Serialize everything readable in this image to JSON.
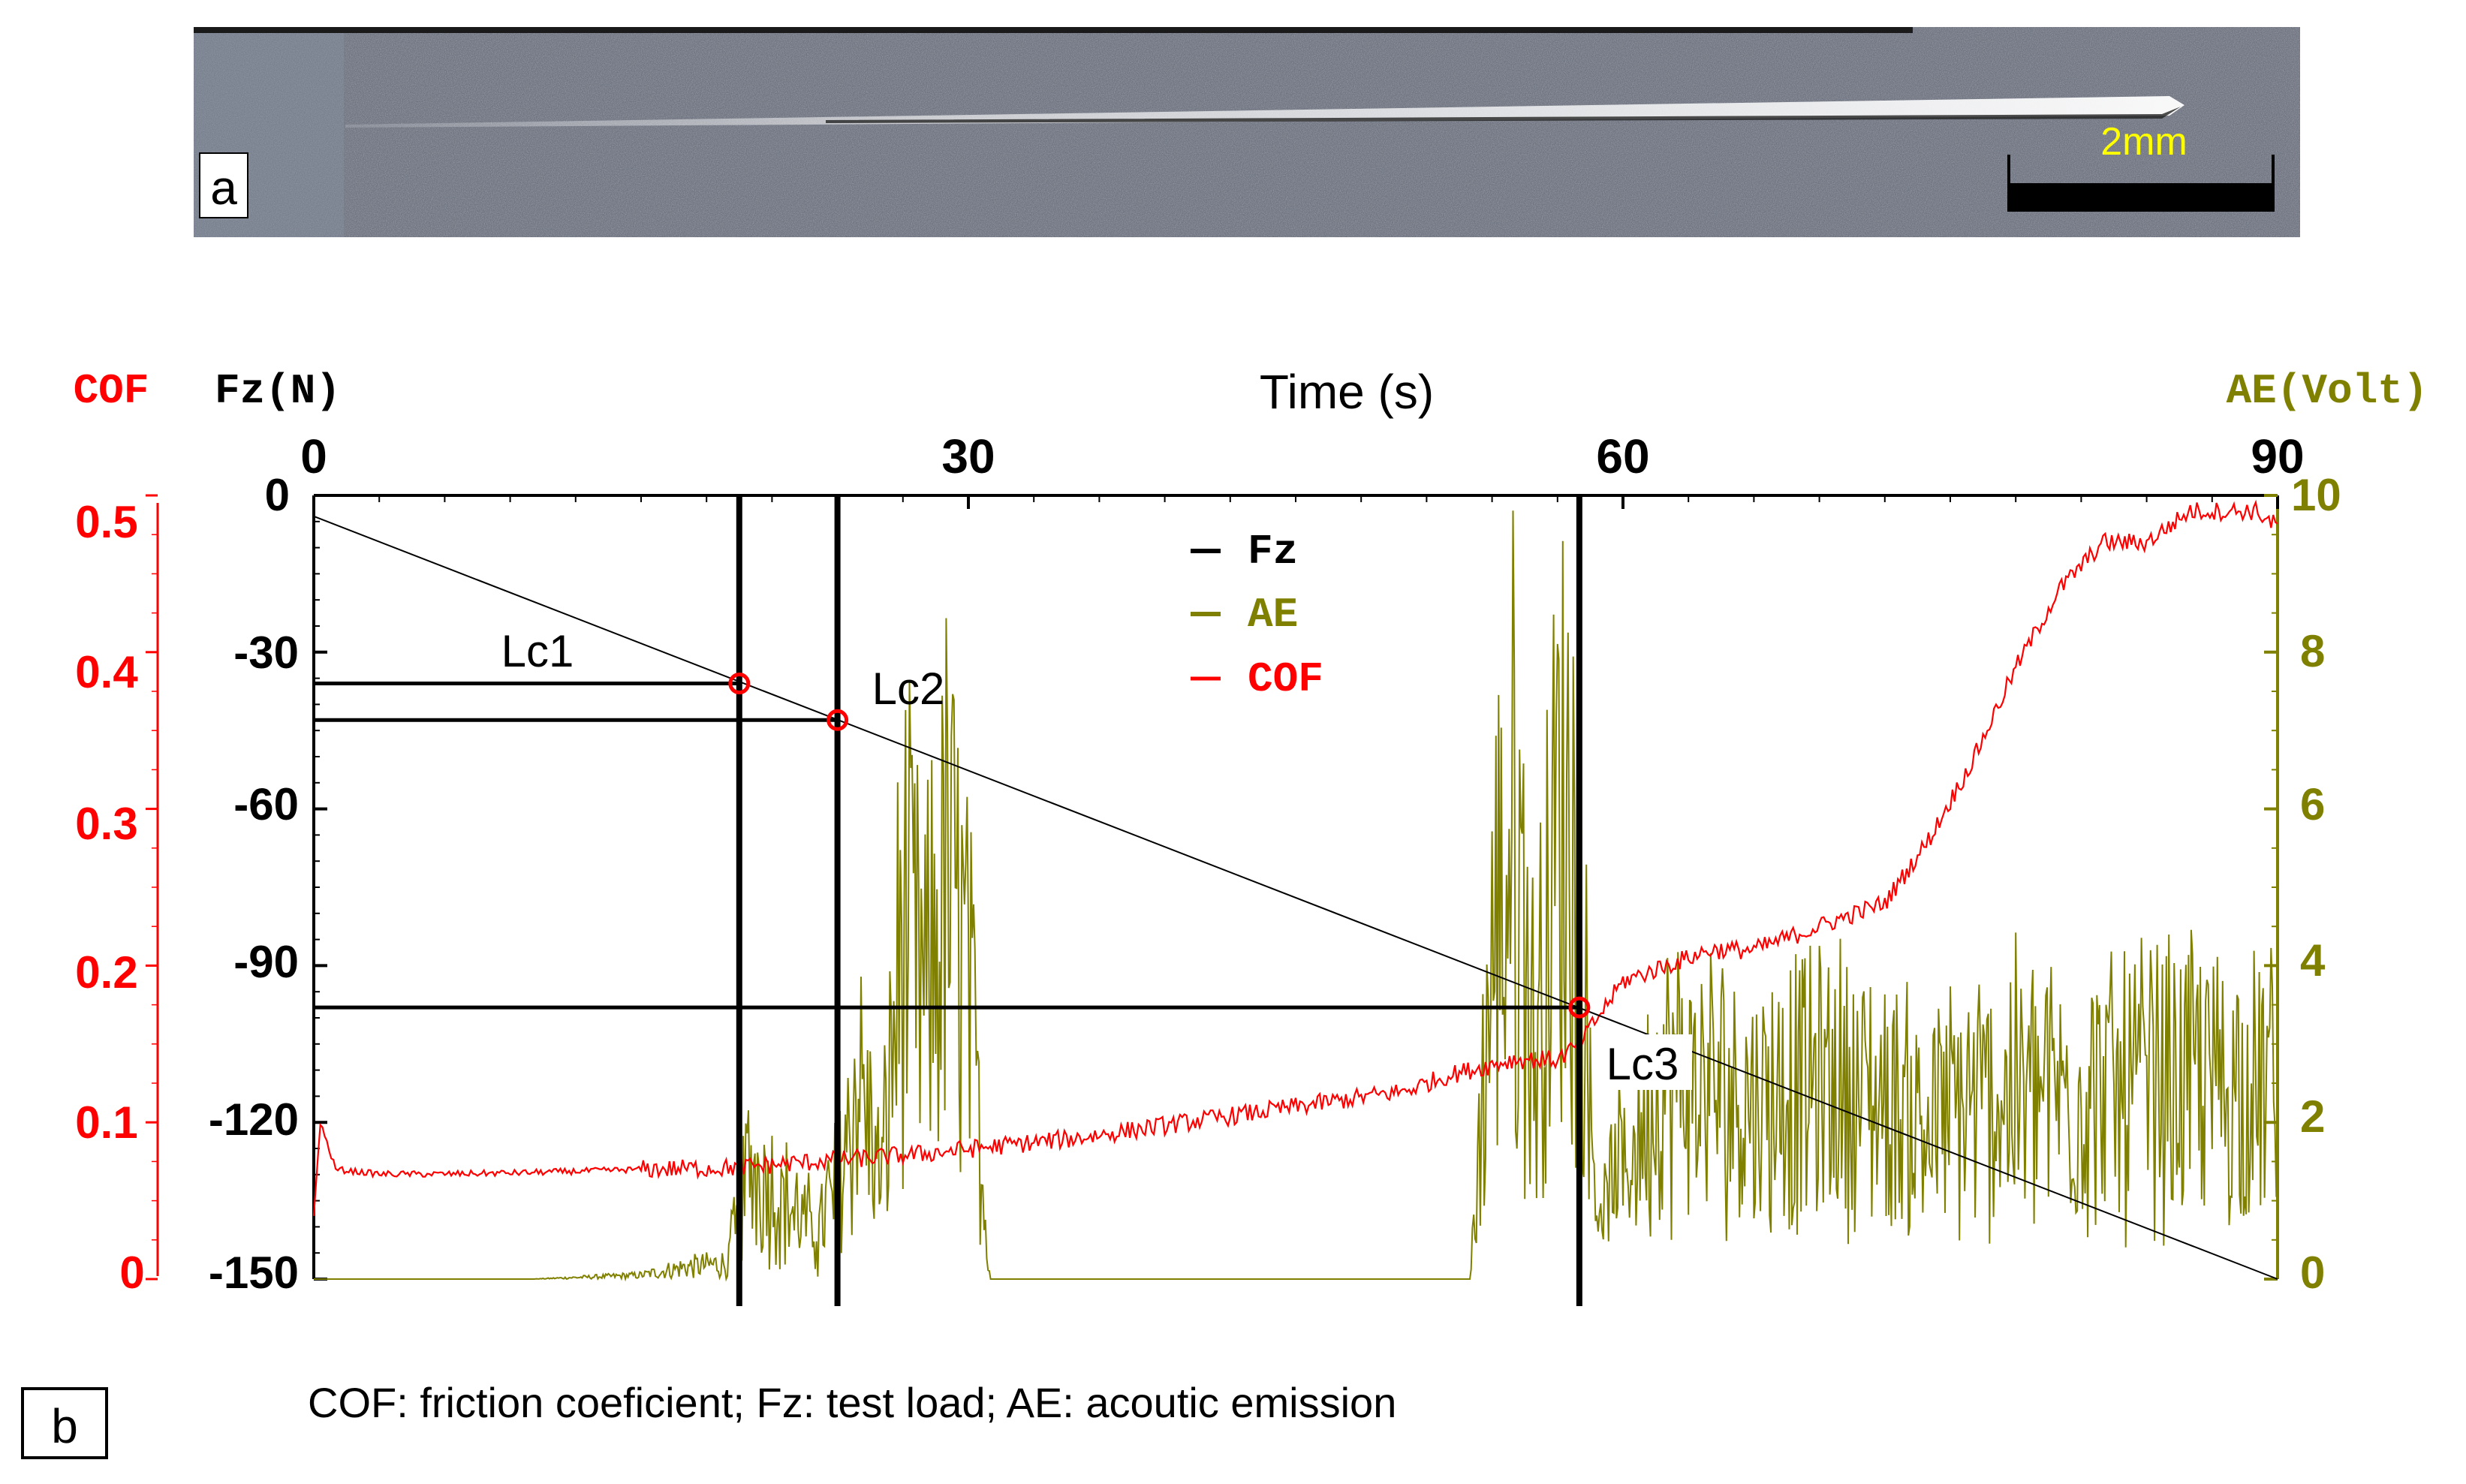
{
  "panel_a": {
    "label": "a",
    "scale_bar_label": "2mm"
  },
  "panel_b": {
    "label": "b",
    "caption": "COF: friction coeficient; Fz: test load; AE: acoutic emission"
  },
  "colors": {
    "cof": "#ff0000",
    "fz": "#000000",
    "ae": "#808000"
  },
  "chart_data": {
    "type": "line",
    "xlabel": "Time (s)",
    "xlim": [
      0,
      90
    ],
    "x_ticks": [
      "0",
      "30",
      "60",
      "90"
    ],
    "axes": {
      "cof": {
        "label": "COF",
        "lim": [
          0,
          0.5
        ],
        "ticks": [
          "0",
          "0.1",
          "0.2",
          "0.3",
          "0.4",
          "0.5"
        ]
      },
      "fz": {
        "label": "Fz(N)",
        "lim": [
          -150,
          0
        ],
        "ticks": [
          "0",
          "-30",
          "-60",
          "-90",
          "-120",
          "-150"
        ]
      },
      "ae": {
        "label": "AE(Volt)",
        "lim": [
          0,
          10
        ],
        "ticks": [
          "0",
          "2",
          "4",
          "6",
          "8",
          "10"
        ]
      }
    },
    "legend": [
      "Fz",
      "AE",
      "COF"
    ],
    "legend_position": "top-center",
    "series": [
      {
        "name": "Fz",
        "axis": "fz",
        "x": [
          0,
          90
        ],
        "y": [
          -4,
          -150
        ]
      },
      {
        "name": "COF",
        "axis": "cof",
        "x": [
          0,
          0.3,
          1,
          3,
          6,
          10,
          15,
          19,
          20,
          22,
          24,
          26,
          28,
          30,
          35,
          40,
          45,
          50,
          52,
          55,
          57,
          58,
          59,
          60,
          62,
          64,
          66,
          68,
          70,
          72,
          74,
          76,
          78,
          80,
          82,
          84,
          85,
          86,
          87,
          88,
          89,
          90
        ],
        "y": [
          0.04,
          0.1,
          0.07,
          0.067,
          0.067,
          0.068,
          0.07,
          0.071,
          0.072,
          0.074,
          0.076,
          0.078,
          0.08,
          0.083,
          0.09,
          0.1,
          0.11,
          0.12,
          0.13,
          0.14,
          0.14,
          0.15,
          0.17,
          0.19,
          0.2,
          0.21,
          0.21,
          0.22,
          0.23,
          0.24,
          0.28,
          0.33,
          0.39,
          0.44,
          0.47,
          0.47,
          0.48,
          0.49,
          0.49,
          0.49,
          0.49,
          0.48
        ]
      },
      {
        "name": "AE",
        "axis": "ae",
        "x": [
          0,
          10,
          15,
          17,
          19,
          20,
          22,
          23,
          24,
          25,
          26,
          27,
          28,
          29,
          30,
          31,
          40,
          50,
          52,
          53,
          54,
          55,
          56,
          57,
          58,
          58.5,
          59,
          62,
          66,
          70,
          74,
          78,
          82,
          86,
          88,
          90
        ],
        "y": [
          0,
          0,
          0.1,
          0.3,
          0.4,
          2.6,
          1.5,
          1.0,
          2.2,
          4.5,
          2.0,
          8.0,
          6.0,
          8.8,
          6.5,
          0,
          0,
          0,
          0,
          0,
          7.0,
          10,
          5.0,
          10,
          10,
          3.5,
          1.5,
          4.4,
          4.0,
          4.3,
          3.5,
          4.2,
          4.1,
          4.4,
          4.3,
          4.2
        ]
      }
    ],
    "critical_loads": [
      {
        "label": "Lc1",
        "time": 19.5,
        "load": -36
      },
      {
        "label": "Lc2",
        "time": 24,
        "load": -43
      },
      {
        "label": "Lc3",
        "time": 58,
        "load": -98
      }
    ]
  }
}
